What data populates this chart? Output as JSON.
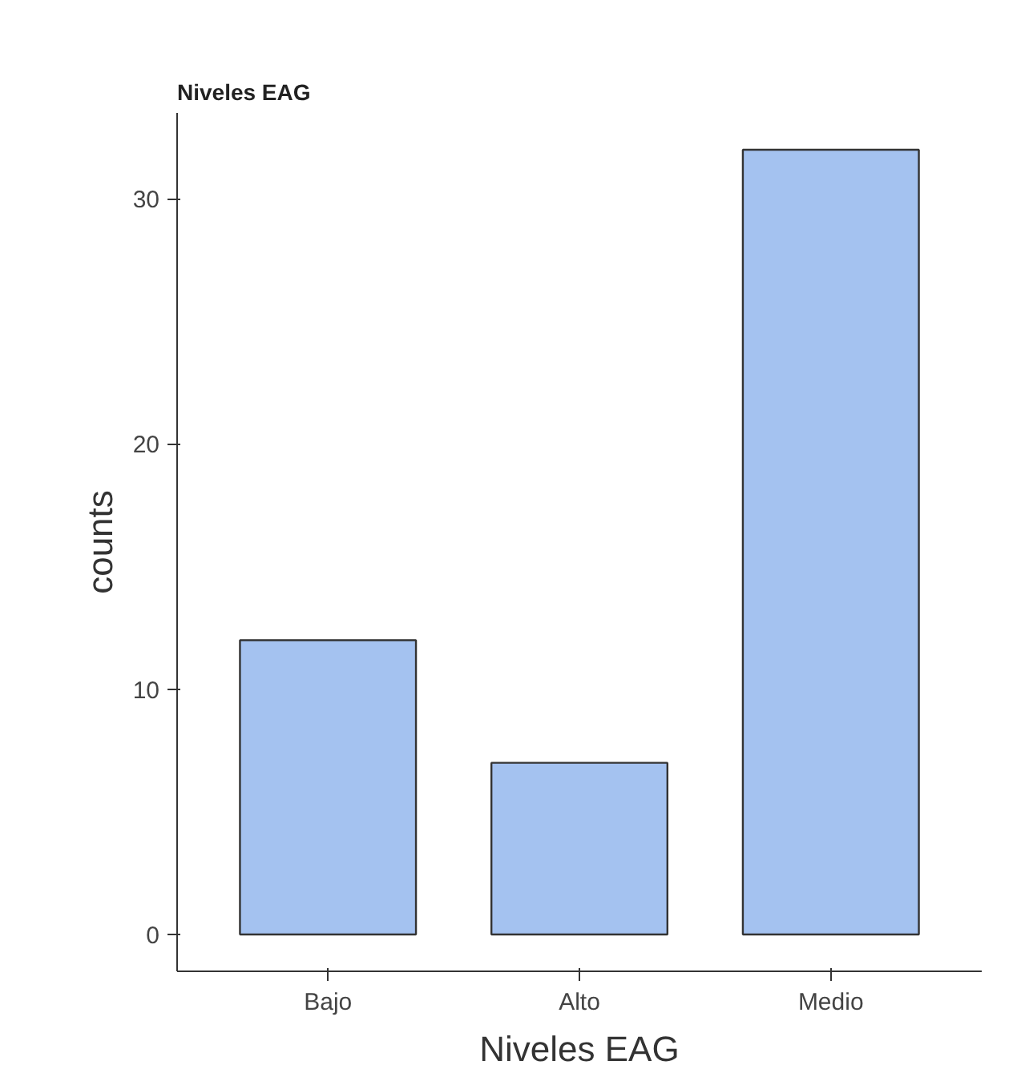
{
  "chart_data": {
    "type": "bar",
    "title": "Niveles EAG",
    "xlabel": "Niveles EAG",
    "ylabel": "counts",
    "categories": [
      "Bajo",
      "Alto",
      "Medio"
    ],
    "values": [
      12,
      7,
      32
    ],
    "color": "#a4c2f0",
    "ylim": [
      -1.5,
      33.5
    ],
    "yticks": [
      0,
      10,
      20,
      30
    ],
    "grid": false
  }
}
